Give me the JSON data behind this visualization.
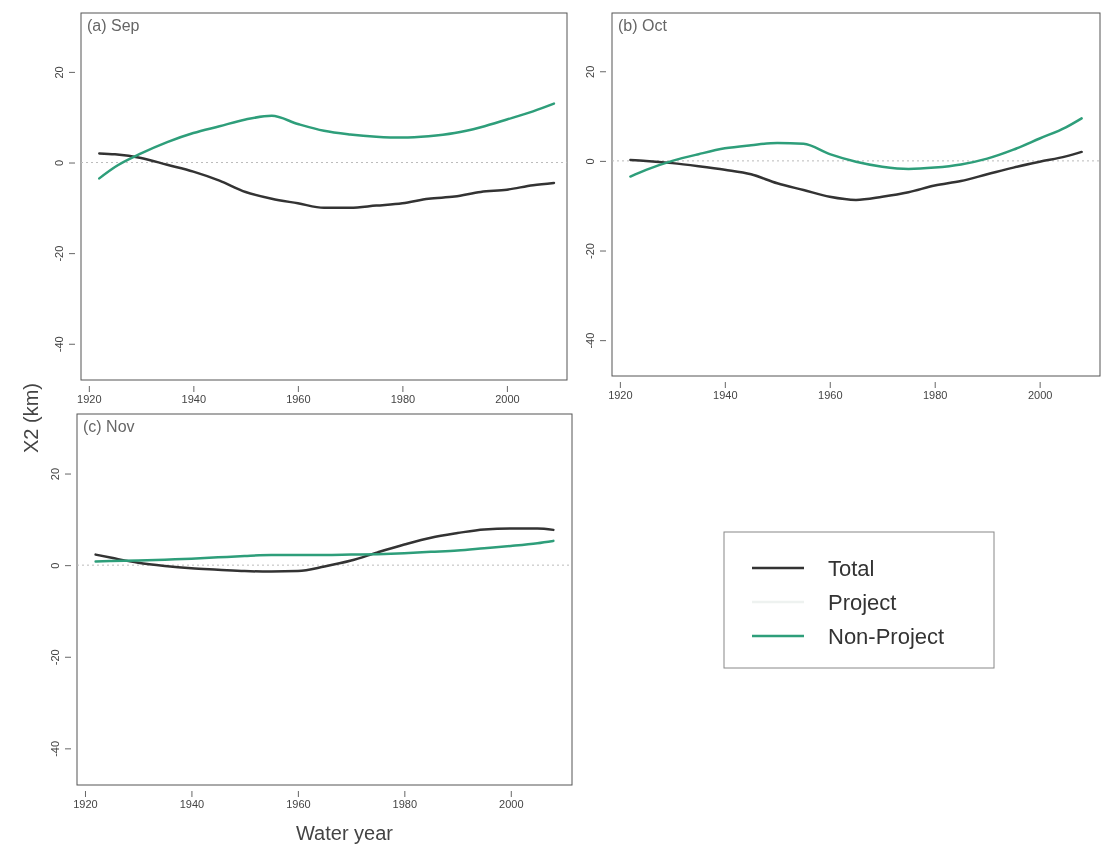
{
  "chart_data": [
    {
      "type": "line",
      "title": "(a) Sep",
      "ylabel": "X2 (km)",
      "x": [
        1922,
        1925,
        1930,
        1935,
        1940,
        1945,
        1950,
        1955,
        1960,
        1965,
        1970,
        1975,
        1980,
        1985,
        1990,
        1995,
        2000,
        2005,
        2009
      ],
      "xlim": [
        1918.5,
        2011.5
      ],
      "ylim": [
        -48,
        33
      ],
      "xticks": [
        1920,
        1940,
        1960,
        1980,
        2000
      ],
      "yticks": [
        -40,
        -20,
        0,
        20
      ],
      "legend": false,
      "ref_lines": [
        {
          "axis": "y",
          "value": 0,
          "color": "#bbbbbb",
          "line_style": "dotted"
        }
      ],
      "series": [
        {
          "color": "#333333",
          "values": [
            2,
            1.8,
            1,
            -0.5,
            -2,
            -4,
            -6.5,
            -8,
            -9,
            -10,
            -10,
            -9.5,
            -9,
            -8,
            -7.5,
            -6.5,
            -6,
            -5,
            -4.5
          ]
        },
        {
          "color": "#2e9e7a",
          "values": [
            -3.5,
            -1,
            2,
            4.5,
            6.5,
            8,
            9.5,
            10.3,
            8.5,
            7,
            6.2,
            5.7,
            5.5,
            5.8,
            6.5,
            7.8,
            9.5,
            11.3,
            13
          ]
        }
      ]
    },
    {
      "type": "line",
      "title": "(b) Oct",
      "x": [
        1922,
        1925,
        1930,
        1935,
        1940,
        1945,
        1950,
        1955,
        1960,
        1965,
        1970,
        1975,
        1980,
        1985,
        1990,
        1995,
        2000,
        2005,
        2008
      ],
      "xlim": [
        1918.5,
        2011.5
      ],
      "ylim": [
        -48,
        33
      ],
      "xticks": [
        1920,
        1940,
        1960,
        1980,
        2000
      ],
      "yticks": [
        -40,
        -20,
        0,
        20
      ],
      "legend": false,
      "ref_lines": [
        {
          "axis": "y",
          "value": 0,
          "color": "#bbbbbb",
          "line_style": "dotted"
        }
      ],
      "series": [
        {
          "color": "#333333",
          "values": [
            0.2,
            0,
            -0.5,
            -1.2,
            -2,
            -3,
            -5,
            -6.5,
            -8,
            -8.7,
            -8,
            -7,
            -5.5,
            -4.5,
            -3,
            -1.5,
            -0.2,
            1,
            2
          ]
        },
        {
          "color": "#2e9e7a",
          "values": [
            -3.5,
            -2,
            0,
            1.5,
            2.8,
            3.5,
            4,
            3.8,
            1.5,
            -0.2,
            -1.3,
            -1.8,
            -1.5,
            -0.8,
            0.5,
            2.5,
            5,
            7.5,
            9.5
          ]
        }
      ]
    },
    {
      "type": "line",
      "title": "(c) Nov",
      "xlabel": "Water year",
      "x": [
        1922,
        1925,
        1930,
        1935,
        1940,
        1945,
        1950,
        1955,
        1960,
        1965,
        1970,
        1975,
        1980,
        1985,
        1990,
        1995,
        2000,
        2005,
        2008
      ],
      "xlim": [
        1918.5,
        2011.5
      ],
      "ylim": [
        -48,
        33
      ],
      "xticks": [
        1920,
        1940,
        1960,
        1980,
        2000
      ],
      "yticks": [
        -40,
        -20,
        0,
        20
      ],
      "legend": "right",
      "ref_lines": [
        {
          "axis": "y",
          "value": 0,
          "color": "#bbbbbb",
          "line_style": "dotted"
        }
      ],
      "series": [
        {
          "name": "Total",
          "color": "#333333",
          "values": [
            2.3,
            1.6,
            0.5,
            -0.2,
            -0.7,
            -1,
            -1.3,
            -1.4,
            -1.3,
            -0.3,
            1,
            2.8,
            4.5,
            6,
            7,
            7.8,
            8,
            8,
            7.7
          ]
        },
        {
          "name": "Project",
          "color": "#eef2f0",
          "values": [
            null,
            null,
            null,
            null,
            null,
            null,
            null,
            null,
            null,
            null,
            null,
            null,
            null,
            null,
            null,
            null,
            null,
            null,
            null
          ]
        },
        {
          "name": "Non-Project",
          "color": "#2e9e7a",
          "values": [
            0.8,
            0.9,
            1,
            1.2,
            1.4,
            1.7,
            2,
            2.2,
            2.2,
            2.2,
            2.3,
            2.4,
            2.6,
            2.9,
            3.2,
            3.7,
            4.2,
            4.8,
            5.3
          ]
        }
      ]
    }
  ]
}
